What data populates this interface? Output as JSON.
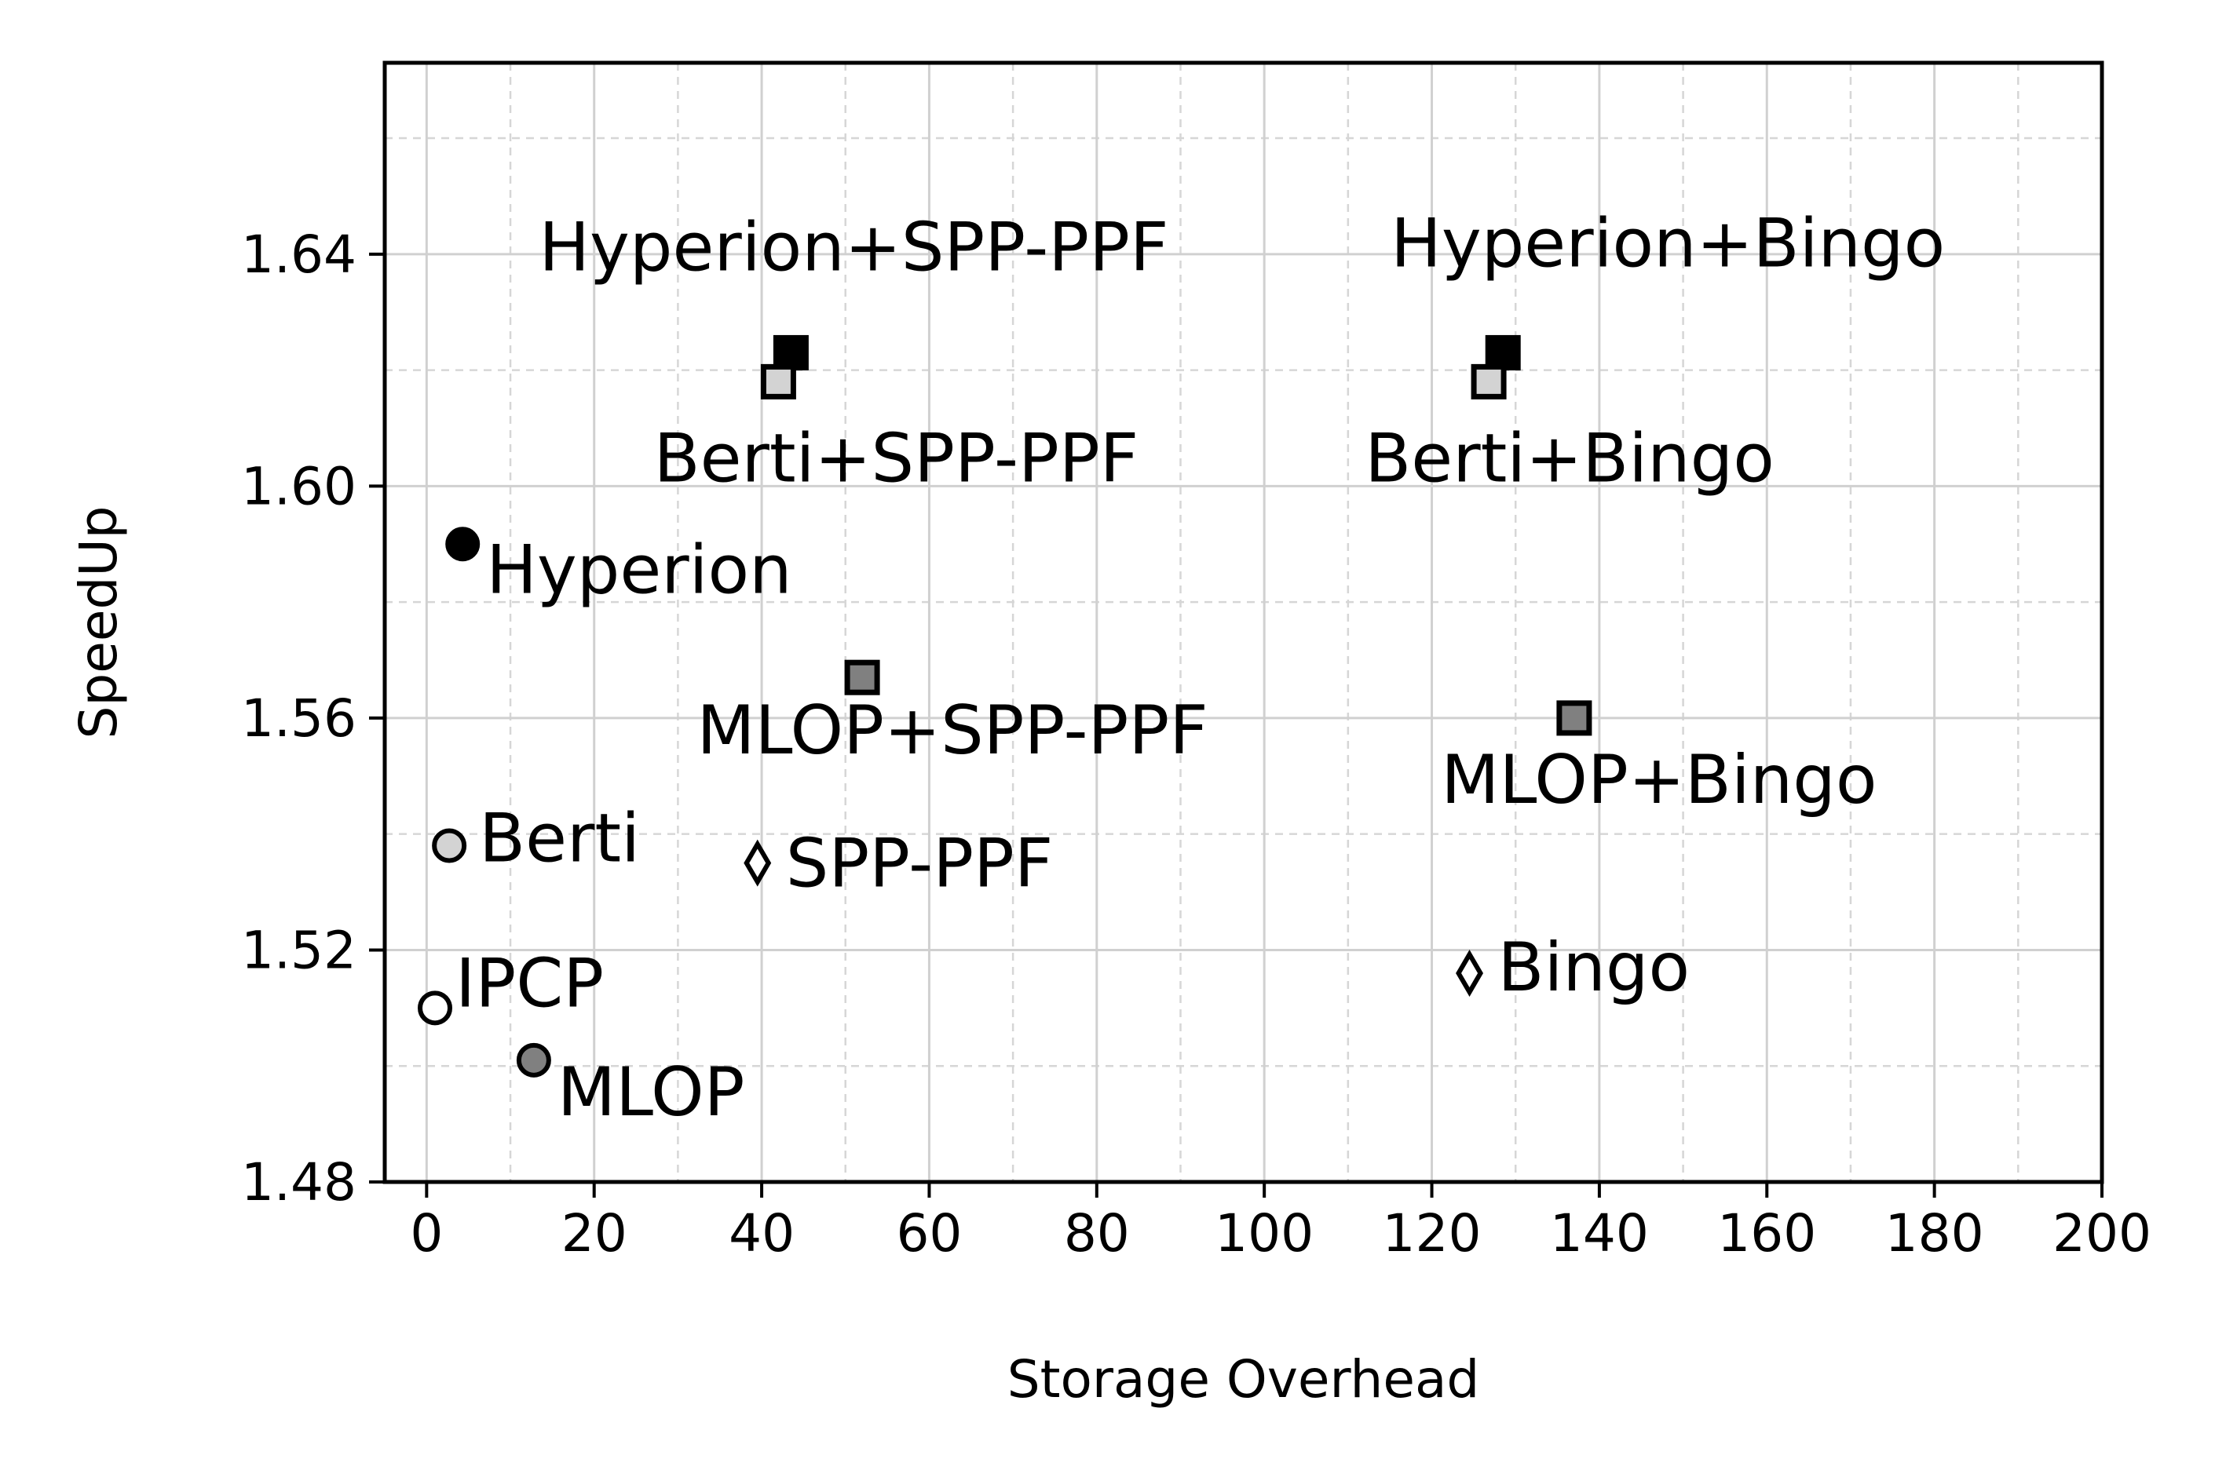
{
  "chart_data": {
    "type": "scatter",
    "xlabel": "Storage Overhead",
    "ylabel": "SpeedUp",
    "xlim": [
      -5,
      200
    ],
    "ylim": [
      1.48,
      1.673
    ],
    "x_ticks": [
      "0",
      "20",
      "40",
      "60",
      "80",
      "100",
      "120",
      "140",
      "160",
      "180",
      "200"
    ],
    "y_ticks": [
      "1.48",
      "1.52",
      "1.56",
      "1.60",
      "1.64"
    ],
    "grid": "major solid, minor dashed",
    "points": [
      {
        "label": "Hyperion",
        "x": 4.3,
        "y": 1.59,
        "marker": "circle",
        "fill": "#000000"
      },
      {
        "label": "Berti",
        "x": 2.7,
        "y": 1.538,
        "marker": "circle",
        "fill": "#d3d3d3"
      },
      {
        "label": "IPCP",
        "x": 1.0,
        "y": 1.51,
        "marker": "circle",
        "fill": "#ffffff"
      },
      {
        "label": "MLOP",
        "x": 12.8,
        "y": 1.501,
        "marker": "circle",
        "fill": "#808080"
      },
      {
        "label": "SPP-PPF",
        "x": 39.5,
        "y": 1.535,
        "marker": "diamond",
        "fill": "#ffffff"
      },
      {
        "label": "Bingo",
        "x": 124.5,
        "y": 1.516,
        "marker": "diamond",
        "fill": "#ffffff"
      },
      {
        "label": "Hyperion+SPP-PPF",
        "x": 43.5,
        "y": 1.623,
        "marker": "square",
        "fill": "#000000"
      },
      {
        "label": "Berti+SPP-PPF",
        "x": 42.0,
        "y": 1.618,
        "marker": "square",
        "fill": "#d3d3d3"
      },
      {
        "label": "MLOP+SPP-PPF",
        "x": 52.0,
        "y": 1.567,
        "marker": "square",
        "fill": "#808080"
      },
      {
        "label": "Hyperion+Bingo",
        "x": 128.5,
        "y": 1.623,
        "marker": "square",
        "fill": "#000000"
      },
      {
        "label": "Berti+Bingo",
        "x": 126.8,
        "y": 1.618,
        "marker": "square",
        "fill": "#d3d3d3"
      },
      {
        "label": "MLOP+Bingo",
        "x": 137.0,
        "y": 1.56,
        "marker": "square",
        "fill": "#808080"
      }
    ]
  }
}
